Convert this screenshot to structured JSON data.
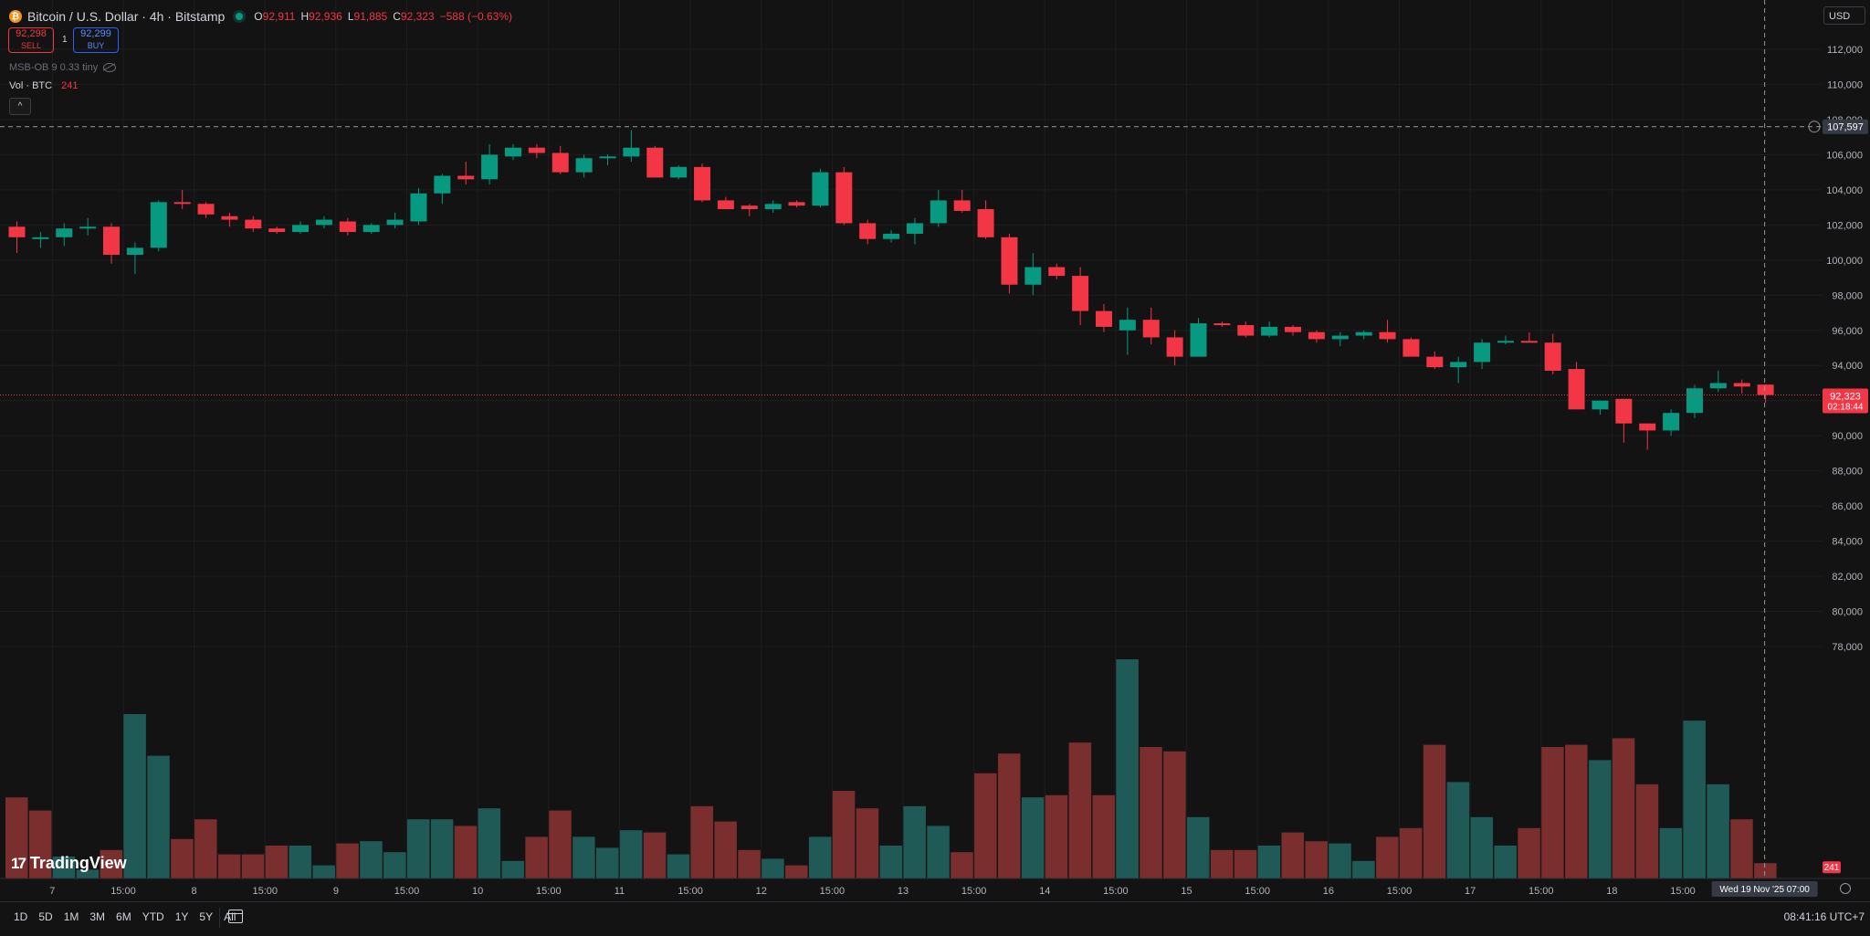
{
  "header": {
    "symbol_icon": "bitcoin-icon",
    "title": "Bitcoin / U.S. Dollar · 4h · Bitstamp",
    "ohlc": {
      "o_label": "O",
      "o_value": "92,911",
      "h_label": "H",
      "h_value": "92,936",
      "l_label": "L",
      "l_value": "91,885",
      "c_label": "C",
      "c_value": "92,323",
      "change": "−588 (−0.63%)"
    }
  },
  "trade": {
    "sell_price": "92,298",
    "sell_label": "SELL",
    "spread": "1",
    "buy_price": "92,299",
    "buy_label": "BUY"
  },
  "indicators": {
    "msb_ob": "MSB-OB 9 0.33 tiny",
    "vol_label": "Vol · BTC",
    "vol_value": "241",
    "collapse_icon": "chevron-up-icon"
  },
  "currency": "USD",
  "logo_text": "TradingView",
  "colors": {
    "up": "#089981",
    "down": "#f23645",
    "vol_up": "#1f5a56",
    "vol_down": "#7a2e2e",
    "background": "#131313",
    "grid": "#1e1e1e"
  },
  "chart_data": {
    "type": "candlestick",
    "title": "Bitcoin / U.S. Dollar · 4h · Bitstamp",
    "ylim": [
      76500,
      114000
    ],
    "price_ticks": [
      78000,
      80000,
      82000,
      84000,
      86000,
      88000,
      90000,
      92000,
      94000,
      96000,
      98000,
      100000,
      102000,
      104000,
      106000,
      108000,
      110000,
      112000
    ],
    "price_tick_labels": [
      "78,000",
      "80,000",
      "82,000",
      "84,000",
      "86,000",
      "88,000",
      "90,000",
      "92,000",
      "94,000",
      "96,000",
      "98,000",
      "100,000",
      "102,000",
      "104,000",
      "106,000",
      "108,000",
      "110,000",
      "112,000"
    ],
    "x_labels": [
      "7",
      "15:00",
      "8",
      "15:00",
      "9",
      "15:00",
      "10",
      "15:00",
      "11",
      "15:00",
      "12",
      "15:00",
      "13",
      "15:00",
      "14",
      "15:00",
      "15",
      "15:00",
      "16",
      "15:00",
      "17",
      "15:00",
      "18",
      "15:00"
    ],
    "x_label_positions": [
      1.5,
      4.5,
      7.5,
      10.5,
      13.5,
      16.5,
      19.5,
      22.5,
      25.5,
      28.5,
      31.5,
      34.5,
      37.5,
      40.5,
      43.5,
      46.5,
      49.5,
      52.5,
      55.5,
      58.5,
      61.5,
      64.5,
      67.5,
      70.5
    ],
    "candles": [
      {
        "o": 101900,
        "h": 102200,
        "l": 100400,
        "c": 101300
      },
      {
        "o": 101300,
        "h": 101600,
        "l": 100700,
        "c": 101300
      },
      {
        "o": 101300,
        "h": 102100,
        "l": 100800,
        "c": 101800
      },
      {
        "o": 101800,
        "h": 102400,
        "l": 101400,
        "c": 101900
      },
      {
        "o": 101900,
        "h": 102100,
        "l": 99800,
        "c": 100300
      },
      {
        "o": 100300,
        "h": 101000,
        "l": 99200,
        "c": 100700
      },
      {
        "o": 100700,
        "h": 103400,
        "l": 100500,
        "c": 103300
      },
      {
        "o": 103300,
        "h": 104000,
        "l": 102900,
        "c": 103200
      },
      {
        "o": 103200,
        "h": 103300,
        "l": 102400,
        "c": 102600
      },
      {
        "o": 102500,
        "h": 102700,
        "l": 101900,
        "c": 102300
      },
      {
        "o": 102300,
        "h": 102500,
        "l": 101600,
        "c": 101800
      },
      {
        "o": 101800,
        "h": 101900,
        "l": 101500,
        "c": 101600
      },
      {
        "o": 101600,
        "h": 102200,
        "l": 101500,
        "c": 102000
      },
      {
        "o": 102000,
        "h": 102500,
        "l": 101800,
        "c": 102300
      },
      {
        "o": 102200,
        "h": 102400,
        "l": 101400,
        "c": 101600
      },
      {
        "o": 101600,
        "h": 102100,
        "l": 101500,
        "c": 102000
      },
      {
        "o": 102000,
        "h": 102700,
        "l": 101800,
        "c": 102300
      },
      {
        "o": 102200,
        "h": 104100,
        "l": 102000,
        "c": 103800
      },
      {
        "o": 103800,
        "h": 104900,
        "l": 103200,
        "c": 104800
      },
      {
        "o": 104800,
        "h": 105600,
        "l": 104300,
        "c": 104600
      },
      {
        "o": 104600,
        "h": 106600,
        "l": 104300,
        "c": 106000
      },
      {
        "o": 105900,
        "h": 106600,
        "l": 105700,
        "c": 106400
      },
      {
        "o": 106400,
        "h": 106600,
        "l": 105800,
        "c": 106100
      },
      {
        "o": 106100,
        "h": 106500,
        "l": 104900,
        "c": 105000
      },
      {
        "o": 105000,
        "h": 106000,
        "l": 104700,
        "c": 105800
      },
      {
        "o": 105800,
        "h": 106000,
        "l": 105400,
        "c": 105900
      },
      {
        "o": 105900,
        "h": 107400,
        "l": 105600,
        "c": 106400
      },
      {
        "o": 106400,
        "h": 106500,
        "l": 104700,
        "c": 104700
      },
      {
        "o": 104700,
        "h": 105400,
        "l": 104600,
        "c": 105300
      },
      {
        "o": 105300,
        "h": 105500,
        "l": 103300,
        "c": 103400
      },
      {
        "o": 103400,
        "h": 103600,
        "l": 102900,
        "c": 102900
      },
      {
        "o": 103100,
        "h": 103200,
        "l": 102500,
        "c": 102900
      },
      {
        "o": 102900,
        "h": 103400,
        "l": 102700,
        "c": 103200
      },
      {
        "o": 103300,
        "h": 103400,
        "l": 103000,
        "c": 103100
      },
      {
        "o": 103100,
        "h": 105200,
        "l": 103000,
        "c": 105000
      },
      {
        "o": 105000,
        "h": 105300,
        "l": 102000,
        "c": 102100
      },
      {
        "o": 102100,
        "h": 102300,
        "l": 100900,
        "c": 101200
      },
      {
        "o": 101200,
        "h": 101700,
        "l": 101000,
        "c": 101500
      },
      {
        "o": 101500,
        "h": 102400,
        "l": 100900,
        "c": 102100
      },
      {
        "o": 102100,
        "h": 104000,
        "l": 101900,
        "c": 103400
      },
      {
        "o": 103400,
        "h": 104000,
        "l": 102700,
        "c": 102800
      },
      {
        "o": 102900,
        "h": 103400,
        "l": 101200,
        "c": 101300
      },
      {
        "o": 101300,
        "h": 101500,
        "l": 98100,
        "c": 98600
      },
      {
        "o": 98600,
        "h": 100400,
        "l": 98000,
        "c": 99600
      },
      {
        "o": 99600,
        "h": 99800,
        "l": 98900,
        "c": 99100
      },
      {
        "o": 99100,
        "h": 99600,
        "l": 96300,
        "c": 97100
      },
      {
        "o": 97100,
        "h": 97500,
        "l": 95900,
        "c": 96200
      },
      {
        "o": 96000,
        "h": 97300,
        "l": 94600,
        "c": 96600
      },
      {
        "o": 96600,
        "h": 97300,
        "l": 95200,
        "c": 95600
      },
      {
        "o": 95600,
        "h": 96000,
        "l": 94000,
        "c": 94500
      },
      {
        "o": 94500,
        "h": 96700,
        "l": 94500,
        "c": 96400
      },
      {
        "o": 96400,
        "h": 96500,
        "l": 96200,
        "c": 96300
      },
      {
        "o": 96300,
        "h": 96500,
        "l": 95600,
        "c": 95700
      },
      {
        "o": 95700,
        "h": 96500,
        "l": 95600,
        "c": 96200
      },
      {
        "o": 96200,
        "h": 96300,
        "l": 95700,
        "c": 95900
      },
      {
        "o": 95900,
        "h": 96000,
        "l": 95300,
        "c": 95500
      },
      {
        "o": 95500,
        "h": 95900,
        "l": 95100,
        "c": 95700
      },
      {
        "o": 95700,
        "h": 96000,
        "l": 95500,
        "c": 95900
      },
      {
        "o": 95900,
        "h": 96600,
        "l": 95300,
        "c": 95500
      },
      {
        "o": 95500,
        "h": 95600,
        "l": 94600,
        "c": 94500
      },
      {
        "o": 94500,
        "h": 94800,
        "l": 93800,
        "c": 93900
      },
      {
        "o": 93900,
        "h": 94500,
        "l": 93000,
        "c": 94200
      },
      {
        "o": 94200,
        "h": 95500,
        "l": 93800,
        "c": 95300
      },
      {
        "o": 95300,
        "h": 95700,
        "l": 95200,
        "c": 95400
      },
      {
        "o": 95400,
        "h": 95900,
        "l": 95300,
        "c": 95300
      },
      {
        "o": 95300,
        "h": 95800,
        "l": 93500,
        "c": 93700
      },
      {
        "o": 93800,
        "h": 94200,
        "l": 91500,
        "c": 91500
      },
      {
        "o": 91500,
        "h": 92000,
        "l": 91200,
        "c": 92000
      },
      {
        "o": 92100,
        "h": 92100,
        "l": 89600,
        "c": 90700
      },
      {
        "o": 90700,
        "h": 90700,
        "l": 89200,
        "c": 90300
      },
      {
        "o": 90300,
        "h": 91500,
        "l": 90000,
        "c": 91300
      },
      {
        "o": 91300,
        "h": 92900,
        "l": 91000,
        "c": 92700
      },
      {
        "o": 92700,
        "h": 93700,
        "l": 92500,
        "c": 93000
      },
      {
        "o": 93000,
        "h": 93200,
        "l": 92400,
        "c": 92800
      },
      {
        "o": 92911,
        "h": 92936,
        "l": 91885,
        "c": 92323
      }
    ],
    "volume": [
      {
        "v": 0.37,
        "up": false
      },
      {
        "v": 0.31,
        "up": false
      },
      {
        "v": 0.1,
        "up": true
      },
      {
        "v": 0.04,
        "up": true
      },
      {
        "v": 0.13,
        "up": false
      },
      {
        "v": 0.75,
        "up": true
      },
      {
        "v": 0.56,
        "up": true
      },
      {
        "v": 0.18,
        "up": false
      },
      {
        "v": 0.27,
        "up": false
      },
      {
        "v": 0.11,
        "up": false
      },
      {
        "v": 0.11,
        "up": false
      },
      {
        "v": 0.15,
        "up": false
      },
      {
        "v": 0.15,
        "up": true
      },
      {
        "v": 0.06,
        "up": true
      },
      {
        "v": 0.16,
        "up": false
      },
      {
        "v": 0.17,
        "up": true
      },
      {
        "v": 0.12,
        "up": true
      },
      {
        "v": 0.27,
        "up": true
      },
      {
        "v": 0.27,
        "up": true
      },
      {
        "v": 0.24,
        "up": false
      },
      {
        "v": 0.32,
        "up": true
      },
      {
        "v": 0.08,
        "up": true
      },
      {
        "v": 0.19,
        "up": false
      },
      {
        "v": 0.31,
        "up": false
      },
      {
        "v": 0.19,
        "up": true
      },
      {
        "v": 0.14,
        "up": true
      },
      {
        "v": 0.22,
        "up": true
      },
      {
        "v": 0.21,
        "up": false
      },
      {
        "v": 0.11,
        "up": true
      },
      {
        "v": 0.33,
        "up": false
      },
      {
        "v": 0.26,
        "up": false
      },
      {
        "v": 0.13,
        "up": false
      },
      {
        "v": 0.09,
        "up": true
      },
      {
        "v": 0.06,
        "up": false
      },
      {
        "v": 0.19,
        "up": true
      },
      {
        "v": 0.4,
        "up": false
      },
      {
        "v": 0.32,
        "up": false
      },
      {
        "v": 0.15,
        "up": true
      },
      {
        "v": 0.33,
        "up": true
      },
      {
        "v": 0.24,
        "up": true
      },
      {
        "v": 0.12,
        "up": false
      },
      {
        "v": 0.48,
        "up": false
      },
      {
        "v": 0.57,
        "up": false
      },
      {
        "v": 0.37,
        "up": true
      },
      {
        "v": 0.38,
        "up": false
      },
      {
        "v": 0.62,
        "up": false
      },
      {
        "v": 0.38,
        "up": false
      },
      {
        "v": 1.0,
        "up": true
      },
      {
        "v": 0.6,
        "up": false
      },
      {
        "v": 0.58,
        "up": false
      },
      {
        "v": 0.28,
        "up": true
      },
      {
        "v": 0.13,
        "up": false
      },
      {
        "v": 0.13,
        "up": false
      },
      {
        "v": 0.15,
        "up": true
      },
      {
        "v": 0.21,
        "up": false
      },
      {
        "v": 0.17,
        "up": false
      },
      {
        "v": 0.16,
        "up": true
      },
      {
        "v": 0.08,
        "up": true
      },
      {
        "v": 0.19,
        "up": false
      },
      {
        "v": 0.23,
        "up": false
      },
      {
        "v": 0.61,
        "up": false
      },
      {
        "v": 0.44,
        "up": true
      },
      {
        "v": 0.28,
        "up": true
      },
      {
        "v": 0.15,
        "up": true
      },
      {
        "v": 0.23,
        "up": false
      },
      {
        "v": 0.6,
        "up": false
      },
      {
        "v": 0.61,
        "up": false
      },
      {
        "v": 0.54,
        "up": true
      },
      {
        "v": 0.64,
        "up": false
      },
      {
        "v": 0.43,
        "up": false
      },
      {
        "v": 0.23,
        "up": true
      },
      {
        "v": 0.72,
        "up": true
      },
      {
        "v": 0.43,
        "up": true
      },
      {
        "v": 0.27,
        "up": false
      },
      {
        "v": 0.07,
        "up": false
      }
    ],
    "current_price": 92323,
    "current_price_label": "92,323",
    "countdown": "02:18:44",
    "crosshair_price": 107597,
    "crosshair_price_label": "107,597",
    "crosshair_time_label": "Wed 19 Nov '25  07:00",
    "volume_label": "241"
  },
  "bottom_bar": {
    "ranges": [
      "1D",
      "5D",
      "1M",
      "3M",
      "6M",
      "YTD",
      "1Y",
      "5Y",
      "All"
    ],
    "calendar_icon": "calendar-icon",
    "clock": "08:41:16 UTC+7"
  }
}
